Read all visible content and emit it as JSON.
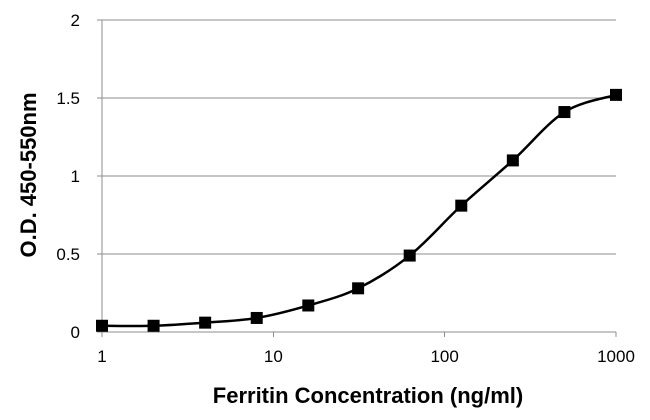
{
  "chart_data": {
    "type": "line",
    "title": "",
    "xlabel": "Ferritin Concentration (ng/ml)",
    "ylabel": "O.D. 450-550nm",
    "x_scale": "log",
    "xlim": [
      1,
      1000
    ],
    "ylim": [
      0,
      2
    ],
    "x_ticks": [
      1,
      10,
      100,
      1000
    ],
    "x_tick_labels": [
      "1",
      "10",
      "100",
      "1000"
    ],
    "y_ticks": [
      0,
      0.5,
      1,
      1.5,
      2
    ],
    "y_tick_labels": [
      "0",
      "0.5",
      "1",
      "1.5",
      "2"
    ],
    "grid": "horizontal",
    "legend": "none",
    "series": [
      {
        "marker": "square",
        "line": "smooth",
        "color": "#000000",
        "x": [
          1,
          2,
          4,
          8,
          16,
          31.25,
          62.5,
          125,
          250,
          500,
          1000
        ],
        "y": [
          0.04,
          0.04,
          0.06,
          0.09,
          0.17,
          0.28,
          0.49,
          0.81,
          1.1,
          1.41,
          1.52
        ]
      }
    ]
  }
}
